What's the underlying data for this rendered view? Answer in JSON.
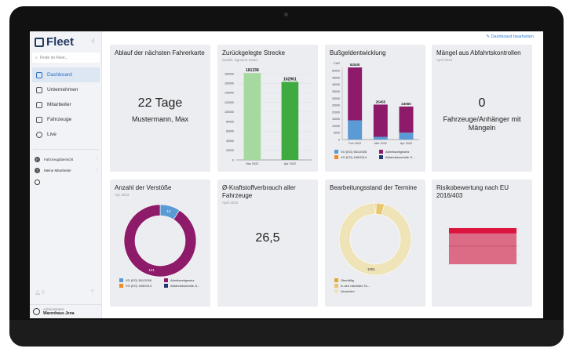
{
  "app": {
    "name": "Fleet",
    "search_placeholder": "Finde im Fleet...",
    "edit_dashboard": "Dashboard bearbeiten"
  },
  "sidebar": {
    "items": [
      {
        "label": "Dashboard",
        "icon": "dashboard-icon",
        "active": true
      },
      {
        "label": "Unternehmen",
        "icon": "building-icon"
      },
      {
        "label": "Mitarbeiter",
        "icon": "id-card-icon"
      },
      {
        "label": "Fahrzeuge",
        "icon": "truck-icon"
      },
      {
        "label": "Live",
        "icon": "live-icon"
      }
    ],
    "favorites": [
      {
        "initial": "F",
        "label": "Fahrzeugübersicht"
      },
      {
        "initial": "T",
        "label": "Meine Mitarbeiter"
      }
    ],
    "notifications": "0",
    "user": {
      "role": "Administrator",
      "name": "Warenhaus Jena"
    }
  },
  "colors": {
    "accent": "#2f6fc0",
    "blue": "#5b9bd5",
    "purple": "#8e1a6a",
    "orange": "#f08a24",
    "navy": "#243a6e",
    "green_light": "#a6d9a0",
    "green": "#3faa40",
    "sand": "#efe3b8",
    "amber": "#e3a92c",
    "risk_red": "#dc143c",
    "risk_pink": "#dc6b85"
  },
  "cards": {
    "fahrerkarte": {
      "title": "Ablauf der nächsten Fahrerkarte",
      "value": "22 Tage",
      "name": "Mustermann, Max"
    },
    "strecke": {
      "title": "Zurückgelegte Strecke",
      "subtitle": "Quelle: signierte Daten"
    },
    "bussgeld": {
      "title": "Bußgeldentwicklung"
    },
    "maengel": {
      "title": "Mängel aus Abfahrtskontrollen",
      "subtitle": "April 2023",
      "value": "0",
      "label": "Fahrzeuge/Anhänger mit Mängeln"
    },
    "verstoesse": {
      "title": "Anzahl der Verstöße",
      "subtitle": "Apr 2023"
    },
    "kraftstoff": {
      "title": "Ø-Kraftstoffverbrauch aller Fahrzeuge",
      "subtitle": "April 2023",
      "value": "26,5"
    },
    "termine": {
      "title": "Bearbeitungsstand der Termine"
    },
    "risiko": {
      "title": "Risikobewertung nach EU 2016/403"
    }
  },
  "chart_data": [
    {
      "id": "strecke",
      "type": "bar",
      "categories": [
        "Mar 2022",
        "Apr 2022"
      ],
      "values": [
        181338,
        162961
      ],
      "data_labels": [
        "181338",
        "162961"
      ],
      "ylim": [
        0,
        180000
      ],
      "yticks": [
        0,
        20000,
        40000,
        60000,
        80000,
        100000,
        120000,
        140000,
        160000,
        180000
      ],
      "colors": [
        "#a6d9a0",
        "#3faa40"
      ],
      "grid": true
    },
    {
      "id": "bussgeld",
      "type": "bar",
      "stacked": true,
      "ylabel": "EUR",
      "categories": [
        "Feb 2022",
        "Mar 2022",
        "Apr 2022"
      ],
      "totals": [
        "52530",
        "25455",
        "24060"
      ],
      "ylim": [
        0,
        52530
      ],
      "yticks": [
        0,
        5000,
        10000,
        15000,
        20000,
        25000,
        30000,
        35000,
        40000,
        45000,
        50000
      ],
      "series": [
        {
          "name": "VO (EG) 561/2006",
          "values": [
            14000,
            2000,
            5000
          ],
          "color": "#5b9bd5"
        },
        {
          "name": "Arbeitszeitgesetz",
          "values": [
            38530,
            23455,
            19060
          ],
          "color": "#8e1a6a"
        },
        {
          "name": "VO (EG) 165/2014",
          "values": [
            0,
            0,
            0
          ],
          "color": "#f08a24"
        },
        {
          "name": "Abfahrtskontrolle G...",
          "values": [
            0,
            0,
            0
          ],
          "color": "#243a6e"
        }
      ]
    },
    {
      "id": "verstoesse",
      "type": "pie",
      "donut": true,
      "series": [
        {
          "name": "VO (EG) 561/2006",
          "value": 12,
          "color": "#5b9bd5"
        },
        {
          "name": "Arbeitszeitgesetz",
          "value": 121,
          "color": "#8e1a6a"
        },
        {
          "name": "VO (EG) 165/2014",
          "value": 0,
          "color": "#f08a24"
        },
        {
          "name": "Abfahrtskontrolle G...",
          "value": 0,
          "color": "#243a6e"
        }
      ]
    },
    {
      "id": "termine",
      "type": "pie",
      "donut": true,
      "series": [
        {
          "name": "Überfällig",
          "value": 5,
          "color": "#e3a92c"
        },
        {
          "name": "In den nächsten Ta...",
          "value": 40,
          "color": "#e8c770"
        },
        {
          "name": "Absolviert",
          "value": 1051,
          "color": "#efe3b8"
        }
      ]
    },
    {
      "id": "risiko",
      "type": "bar",
      "stacked": true,
      "series": [
        {
          "value": 15,
          "color": "#dc143c"
        },
        {
          "value": 85,
          "color": "#dc6b85"
        }
      ]
    }
  ]
}
